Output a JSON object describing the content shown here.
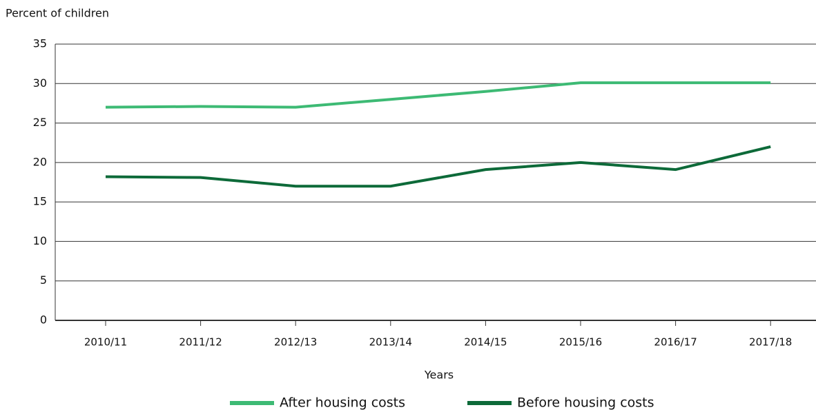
{
  "chart_data": {
    "type": "line",
    "y_label": "Percent of children",
    "x_label": "Years",
    "categories": [
      "2010/11",
      "2011/12",
      "2012/13",
      "2013/14",
      "2014/15",
      "2015/16",
      "2016/17",
      "2017/18"
    ],
    "series": [
      {
        "name": "After housing costs",
        "color": "#3dba74",
        "values": [
          27,
          27.1,
          27,
          28,
          29,
          30.1,
          30.1,
          30.1
        ]
      },
      {
        "name": "Before housing costs",
        "color": "#0d6a39",
        "values": [
          18.2,
          18.1,
          17,
          17,
          19.1,
          20,
          19.1,
          22
        ]
      }
    ],
    "ylim": [
      0,
      35
    ],
    "yticks": [
      0,
      5,
      10,
      15,
      20,
      25,
      30,
      35
    ],
    "grid": true
  }
}
